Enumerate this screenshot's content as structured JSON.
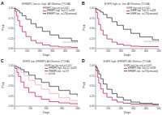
{
  "chart_data": [
    {
      "type": "step",
      "title": "EFEMP1 low vs. high, All Gliomas (TCGA)",
      "annotations": [
        "A"
      ],
      "legend_title": "EFEMP1 (log-rank p<0.001)",
      "legend": "upper right",
      "xlabel": "Days",
      "ylabel": "Prob",
      "xlim": [
        0,
        500
      ],
      "ylim": [
        0,
        1.05
      ],
      "xticks": [
        0,
        100,
        200,
        300,
        400,
        500
      ],
      "yticks": [
        {
          "value": 0.0,
          "label": "0.00"
        },
        0.25,
        {
          "value": 0.5,
          "label": "0.50"
        },
        0.75,
        {
          "value": 1.0,
          "label": "1.00"
        }
      ],
      "series": [
        {
          "name": "EFEMP1 high  S=0.11, n=329",
          "color": "#cc0066",
          "x": [
            0,
            5,
            15,
            25,
            40,
            60,
            90,
            130,
            170,
            220,
            280,
            350,
            450,
            500
          ],
          "values": [
            1.0,
            0.93,
            0.82,
            0.7,
            0.56,
            0.42,
            0.3,
            0.2,
            0.14,
            0.09,
            0.06,
            0.04,
            0.03,
            0.03
          ]
        },
        {
          "name": "EFEMP1 low   n=173(censored)",
          "color": "#222222",
          "x": [
            0,
            5,
            15,
            25,
            40,
            60,
            90,
            130,
            170,
            220,
            280,
            350,
            450,
            500
          ],
          "values": [
            1.0,
            0.99,
            0.97,
            0.94,
            0.89,
            0.82,
            0.73,
            0.62,
            0.53,
            0.43,
            0.34,
            0.26,
            0.19,
            0.16
          ]
        },
        {
          "color": "#aaaaaa",
          "x": [
            380,
            500
          ],
          "values": [
            0.16,
            0.16
          ]
        }
      ]
    },
    {
      "type": "step",
      "title": "EGFR high vs. low, All Gliomas (TCGA)",
      "annotations": [
        "B"
      ],
      "legend_title": "EGFR (log-rank p<0.001)",
      "legend": "upper right",
      "xlabel": "Days",
      "ylabel": "Prob",
      "xlim": [
        0,
        500
      ],
      "ylim": [
        0,
        1.05
      ],
      "xticks": [
        0,
        100,
        200,
        300,
        400,
        500
      ],
      "yticks": [
        {
          "value": 0.0,
          "label": "0.00"
        },
        0.25,
        {
          "value": 0.5,
          "label": "0.50"
        },
        0.75,
        {
          "value": 1.0,
          "label": "1.00"
        }
      ],
      "series": [
        {
          "name": "EGFR high  S=0.11, n=329",
          "color": "#cc0066",
          "x": [
            0,
            5,
            15,
            25,
            40,
            60,
            90,
            130,
            170,
            220,
            280,
            350,
            450,
            500
          ],
          "values": [
            1.0,
            0.9,
            0.75,
            0.6,
            0.46,
            0.34,
            0.24,
            0.16,
            0.11,
            0.08,
            0.06,
            0.05,
            0.05,
            0.05
          ]
        },
        {
          "name": "EGFR low   n=173(censored)",
          "color": "#222222",
          "x": [
            0,
            5,
            15,
            25,
            40,
            60,
            90,
            130,
            170,
            220,
            280,
            350,
            450,
            500
          ],
          "values": [
            1.0,
            0.99,
            0.97,
            0.95,
            0.91,
            0.85,
            0.77,
            0.67,
            0.58,
            0.48,
            0.38,
            0.29,
            0.22,
            0.18
          ]
        },
        {
          "color": "#aaaaaa",
          "x": [
            380,
            500
          ],
          "values": [
            0.18,
            0.18
          ]
        }
      ]
    },
    {
      "type": "step",
      "title": "EGFR low, EFEMP1 All Gliomas (TCGA)",
      "annotations": [
        "C"
      ],
      "legend_title": "EGFR low (log-rank p<0.001)",
      "legend": "upper right",
      "xlabel": "Days",
      "ylabel": "Prob",
      "xlim": [
        0,
        400
      ],
      "ylim": [
        0,
        1.05
      ],
      "xticks": [
        0,
        100,
        200,
        300,
        400
      ],
      "yticks": [
        {
          "value": 0.0,
          "label": "0.00"
        },
        0.25,
        {
          "value": 0.5,
          "label": "0.50"
        },
        0.75,
        {
          "value": 1.0,
          "label": "1.00"
        }
      ],
      "series": [
        {
          "name": "EFEMP1 high  S=0.11, n=329",
          "color": "#cc0066",
          "x": [
            0,
            5,
            15,
            25,
            40,
            60,
            90,
            130,
            170,
            220,
            280,
            350,
            400
          ],
          "values": [
            1.0,
            0.94,
            0.84,
            0.74,
            0.6,
            0.46,
            0.34,
            0.24,
            0.17,
            0.11,
            0.08,
            0.06,
            0.05
          ]
        },
        {
          "name": "EFEMP1 low   n=173",
          "color": "#222222",
          "x": [
            0,
            5,
            15,
            25,
            40,
            60,
            90,
            130,
            170,
            220,
            280,
            350,
            400
          ],
          "values": [
            1.0,
            0.99,
            0.97,
            0.95,
            0.91,
            0.85,
            0.77,
            0.68,
            0.59,
            0.49,
            0.39,
            0.3,
            0.24
          ]
        },
        {
          "name": "p<0.ok",
          "color": "#f0a0bb",
          "x": [
            0,
            5,
            15,
            25,
            40,
            60,
            90,
            130,
            170,
            220,
            280,
            350,
            400
          ],
          "values": [
            1.0,
            0.98,
            0.95,
            0.91,
            0.84,
            0.75,
            0.64,
            0.53,
            0.42,
            0.31,
            0.21,
            0.14,
            0.1
          ]
        }
      ]
    },
    {
      "type": "step",
      "title": "EGFR high, EFEMP1 All Gliomas (TCGA)",
      "annotations": [
        "D"
      ],
      "legend_title": "EGFR high (log-rank p<0.001)",
      "legend": "upper right",
      "xlabel": "Days",
      "ylabel": "Prob",
      "xlim": [
        0,
        500
      ],
      "ylim": [
        0,
        1.05
      ],
      "xticks": [
        0,
        100,
        200,
        300,
        400,
        500
      ],
      "yticks": [
        {
          "value": 0.0,
          "label": "0.00"
        },
        0.25,
        {
          "value": 0.5,
          "label": "0.50"
        },
        0.75,
        {
          "value": 1.0,
          "label": "1.00"
        }
      ],
      "series": [
        {
          "name": "EFEMP1 high  S=0.11, n=329",
          "color": "#cc0066",
          "x": [
            0,
            5,
            15,
            25,
            40,
            60,
            90,
            130,
            170,
            220,
            280,
            350,
            450,
            500
          ],
          "values": [
            1.0,
            0.88,
            0.72,
            0.57,
            0.43,
            0.32,
            0.22,
            0.15,
            0.1,
            0.07,
            0.05,
            0.04,
            0.03,
            0.03
          ]
        },
        {
          "name": "EFEMP1 low   n=173(censored)",
          "color": "#222222",
          "x": [
            0,
            5,
            15,
            25,
            40,
            60,
            90,
            130,
            170,
            220,
            280,
            350,
            450,
            500
          ],
          "values": [
            1.0,
            0.96,
            0.89,
            0.8,
            0.68,
            0.55,
            0.42,
            0.31,
            0.22,
            0.15,
            0.1,
            0.07,
            0.05,
            0.04
          ]
        },
        {
          "color": "#aaaaaa",
          "x": [
            380,
            500
          ],
          "values": [
            0.04,
            0.04
          ]
        }
      ]
    }
  ]
}
